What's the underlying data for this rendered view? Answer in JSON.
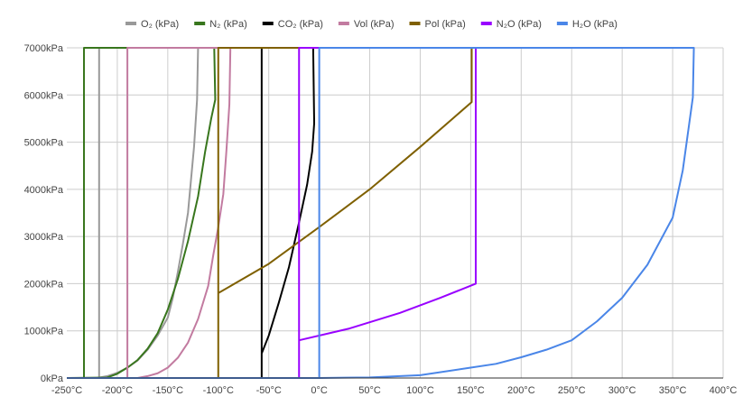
{
  "chart_data": {
    "type": "line",
    "title": "",
    "xlabel": "",
    "ylabel": "",
    "xlim": [
      -250,
      400
    ],
    "ylim": [
      0,
      7000
    ],
    "x_ticks": [
      -250,
      -200,
      -150,
      -100,
      -50,
      0,
      50,
      100,
      150,
      200,
      250,
      300,
      350,
      400
    ],
    "x_tick_labels": [
      "-250°C",
      "-200°C",
      "-150°C",
      "-100°C",
      "-50°C",
      "0°C",
      "50°C",
      "100°C",
      "150°C",
      "200°C",
      "250°C",
      "300°C",
      "350°C",
      "400°C"
    ],
    "y_ticks": [
      0,
      1000,
      2000,
      3000,
      4000,
      5000,
      6000,
      7000
    ],
    "y_tick_labels": [
      "0kPa",
      "1000kPa",
      "2000kPa",
      "3000kPa",
      "4000kPa",
      "5000kPa",
      "6000kPa",
      "7000kPa"
    ],
    "grid": true,
    "legend_position": "top",
    "series": [
      {
        "name": "O₂ (kPa)",
        "color": "#999999",
        "points": [
          [
            -250,
            0
          ],
          [
            -220,
            0
          ],
          [
            -210,
            40
          ],
          [
            -200,
            110
          ],
          [
            -190,
            220
          ],
          [
            -180,
            370
          ],
          [
            -170,
            600
          ],
          [
            -160,
            900
          ],
          [
            -150,
            1280
          ],
          [
            -145,
            1700
          ],
          [
            -140,
            2250
          ],
          [
            -135,
            2850
          ],
          [
            -130,
            3500
          ],
          [
            -127,
            4200
          ],
          [
            -124,
            4900
          ],
          [
            -121,
            5900
          ],
          [
            -120,
            7000
          ],
          [
            -218,
            7000
          ],
          [
            -218,
            0
          ]
        ]
      },
      {
        "name": "N₂ (kPa)",
        "color": "#38761d",
        "points": [
          [
            -250,
            0
          ],
          [
            -210,
            10
          ],
          [
            -200,
            90
          ],
          [
            -190,
            220
          ],
          [
            -180,
            380
          ],
          [
            -170,
            620
          ],
          [
            -160,
            950
          ],
          [
            -150,
            1450
          ],
          [
            -140,
            2100
          ],
          [
            -130,
            2900
          ],
          [
            -120,
            3850
          ],
          [
            -113,
            4800
          ],
          [
            -107,
            5500
          ],
          [
            -103,
            5900
          ],
          [
            -104,
            7000
          ],
          [
            -233,
            7000
          ],
          [
            -233,
            0
          ]
        ]
      },
      {
        "name": "CO₂ (kPa)",
        "color": "#000000",
        "points": [
          [
            -250,
            0
          ],
          [
            -57,
            0
          ],
          [
            -57,
            520
          ],
          [
            -50,
            900
          ],
          [
            -40,
            1600
          ],
          [
            -30,
            2350
          ],
          [
            -20,
            3300
          ],
          [
            -12,
            4100
          ],
          [
            -7,
            4800
          ],
          [
            -5,
            5400
          ],
          [
            -6,
            7000
          ],
          [
            -57,
            7000
          ],
          [
            -57,
            0
          ]
        ]
      },
      {
        "name": "Vol (kPa)",
        "color": "#c27ba0",
        "points": [
          [
            -250,
            0
          ],
          [
            -180,
            0
          ],
          [
            -170,
            40
          ],
          [
            -160,
            100
          ],
          [
            -150,
            220
          ],
          [
            -140,
            430
          ],
          [
            -130,
            750
          ],
          [
            -120,
            1250
          ],
          [
            -110,
            1950
          ],
          [
            -105,
            2600
          ],
          [
            -100,
            3200
          ],
          [
            -95,
            3900
          ],
          [
            -92,
            4800
          ],
          [
            -89,
            5800
          ],
          [
            -88,
            7000
          ],
          [
            -190,
            7000
          ],
          [
            -190,
            0
          ]
        ]
      },
      {
        "name": "Pol (kPa)",
        "color": "#7f6000",
        "points": [
          [
            -250,
            0
          ],
          [
            -100,
            0
          ],
          [
            -100,
            1800
          ],
          [
            -50,
            2420
          ],
          [
            0,
            3200
          ],
          [
            50,
            4000
          ],
          [
            100,
            4900
          ],
          [
            151,
            5850
          ],
          [
            151,
            7000
          ],
          [
            -100,
            7000
          ],
          [
            -100,
            0
          ]
        ]
      },
      {
        "name": "N₂O (kPa)",
        "color": "#9900ff",
        "points": [
          [
            -250,
            0
          ],
          [
            -20,
            0
          ],
          [
            -20,
            800
          ],
          [
            30,
            1050
          ],
          [
            80,
            1380
          ],
          [
            120,
            1700
          ],
          [
            155,
            2000
          ],
          [
            155,
            7000
          ],
          [
            -20,
            7000
          ],
          [
            -20,
            0
          ]
        ]
      },
      {
        "name": "H₂O (kPa)",
        "color": "#4a86e8",
        "points": [
          [
            -250,
            0
          ],
          [
            -2,
            0
          ],
          [
            0,
            1
          ],
          [
            50,
            12
          ],
          [
            100,
            60
          ],
          [
            150,
            220
          ],
          [
            175,
            300
          ],
          [
            200,
            440
          ],
          [
            225,
            600
          ],
          [
            250,
            800
          ],
          [
            275,
            1200
          ],
          [
            300,
            1700
          ],
          [
            325,
            2400
          ],
          [
            350,
            3400
          ],
          [
            360,
            4400
          ],
          [
            370,
            5950
          ],
          [
            371,
            7000
          ],
          [
            0,
            7000
          ],
          [
            0,
            0
          ]
        ]
      }
    ]
  }
}
